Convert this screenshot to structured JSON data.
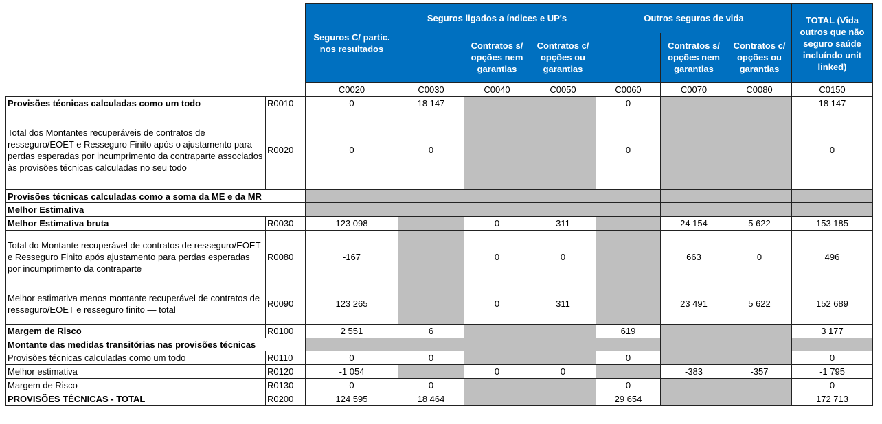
{
  "header": {
    "col_c0020": "Seguros C/ partic. nos resultados",
    "group_index": "Seguros ligados a índices e UP's",
    "group_other": "Outros seguros de vida",
    "total": "TOTAL (Vida outros que não seguro saúde incluíndo unit linked)",
    "sub_c0040": "Contratos s/ opções nem garantias",
    "sub_c0050": "Contratos c/ opções ou garantias",
    "sub_c0070": "Contratos s/ opções nem garantias",
    "sub_c0080": "Contratos c/ opções ou garantias",
    "codes": [
      "C0020",
      "C0030",
      "C0040",
      "C0050",
      "C0060",
      "C0070",
      "C0080",
      "C0150"
    ]
  },
  "rows": [
    {
      "label": "Provisões técnicas calculadas como um todo",
      "code": "R0010",
      "values": [
        "0",
        "18 147",
        "",
        "",
        "0",
        "",
        "",
        "18 147"
      ]
    },
    {
      "label": "Total dos Montantes recuperáveis de contratos de resseguro/EOET e Resseguro Finito após o ajustamento para perdas esperadas por incumprimento da contraparte associados às provisões técnicas calculadas no seu todo",
      "code": "R0020",
      "values": [
        "0",
        "0",
        "",
        "",
        "0",
        "",
        "",
        "0"
      ]
    },
    {
      "label": "Provisões técnicas calculadas como a soma da ME e da MR",
      "code": "",
      "values": [
        "",
        "",
        "",
        "",
        "",
        "",
        "",
        ""
      ]
    },
    {
      "label": "Melhor Estimativa",
      "code": "",
      "values": [
        "",
        "",
        "",
        "",
        "",
        "",
        "",
        ""
      ]
    },
    {
      "label": "Melhor Estimativa bruta",
      "code": "R0030",
      "values": [
        "123 098",
        "",
        "0",
        "311",
        "",
        "24 154",
        "5 622",
        "153 185"
      ]
    },
    {
      "label": "Total do Montante recuperável de contratos de resseguro/EOET e Resseguro Finito após ajustamento para perdas esperadas por incumprimento da contraparte",
      "code": "R0080",
      "values": [
        "-167",
        "",
        "0",
        "0",
        "",
        "663",
        "0",
        "496"
      ]
    },
    {
      "label": "Melhor estimativa menos montante recuperável de contratos de resseguro/EOET e resseguro finito — total",
      "code": "R0090",
      "values": [
        "123 265",
        "",
        "0",
        "311",
        "",
        "23 491",
        "5 622",
        "152 689"
      ]
    },
    {
      "label": "Margem de Risco",
      "code": "R0100",
      "values": [
        "2 551",
        "6",
        "",
        "",
        "619",
        "",
        "",
        "3 177"
      ]
    },
    {
      "label": "Montante das medidas transitórias nas provisões técnicas",
      "code": "",
      "values": [
        "",
        "",
        "",
        "",
        "",
        "",
        "",
        ""
      ]
    },
    {
      "label": "Provisões técnicas calculadas como um todo",
      "code": "R0110",
      "values": [
        "0",
        "0",
        "",
        "",
        "0",
        "",
        "",
        "0"
      ]
    },
    {
      "label": "Melhor estimativa",
      "code": "R0120",
      "values": [
        "-1 054",
        "",
        "0",
        "0",
        "",
        "-383",
        "-357",
        "-1 795"
      ]
    },
    {
      "label": "Margem de Risco",
      "code": "R0130",
      "values": [
        "0",
        "0",
        "",
        "",
        "0",
        "",
        "",
        "0"
      ]
    },
    {
      "label": "PROVISÕES TÉCNICAS - TOTAL",
      "code": "R0200",
      "values": [
        "124 595",
        "18 464",
        "",
        "",
        "29 654",
        "",
        "",
        "172 713"
      ]
    }
  ]
}
